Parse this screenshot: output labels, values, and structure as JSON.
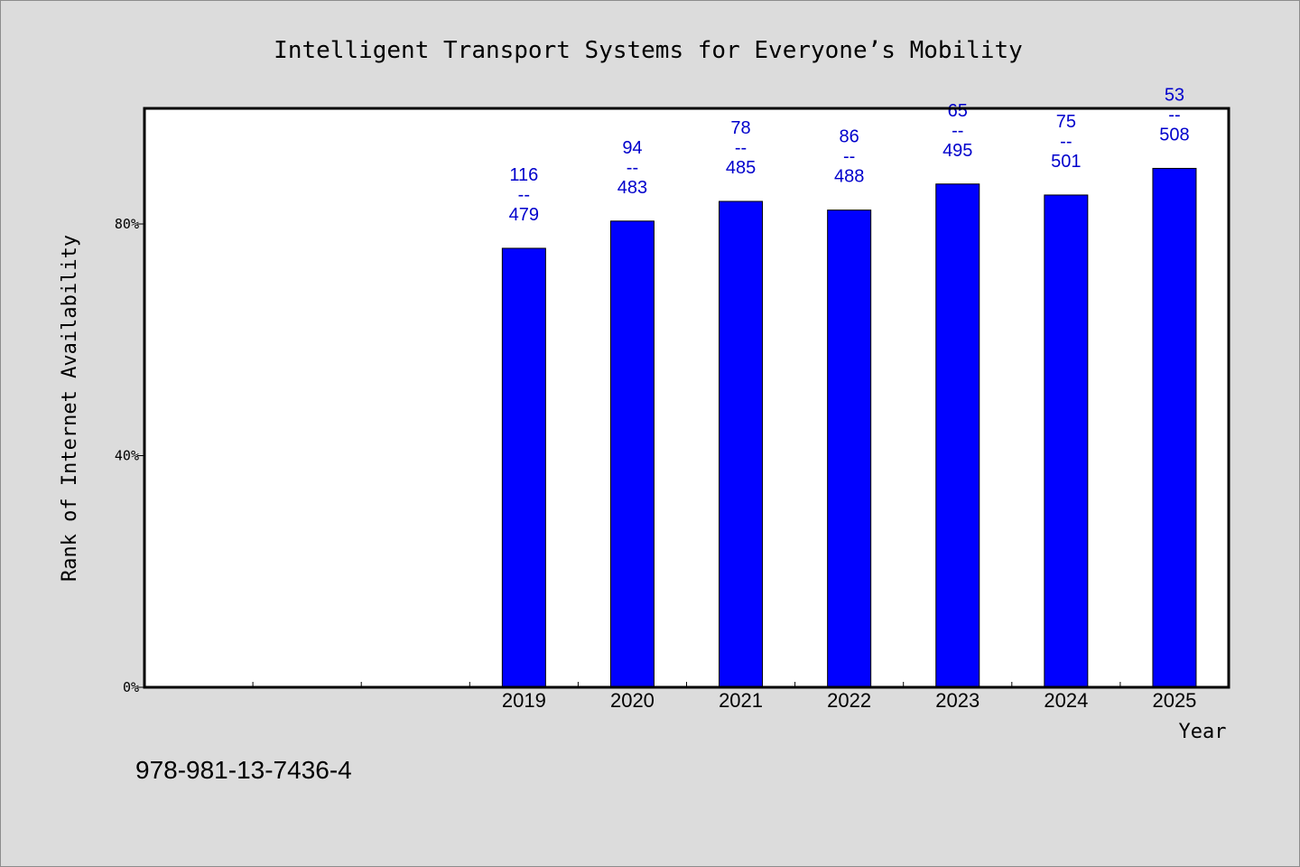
{
  "chart_data": {
    "type": "bar",
    "title": "Intelligent Transport Systems for Everyone’s Mobility",
    "xlabel": "Year",
    "ylabel": "Rank of Internet Availability",
    "categories": [
      "",
      "",
      "",
      "2019",
      "2020",
      "2021",
      "2022",
      "2023",
      "2024",
      "2025"
    ],
    "values": [
      null,
      null,
      null,
      75.8,
      80.5,
      83.9,
      82.4,
      86.9,
      85.0,
      89.6
    ],
    "data_labels": [
      null,
      null,
      null,
      {
        "top": "116",
        "mid": "--",
        "bottom": "479"
      },
      {
        "top": "94",
        "mid": "--",
        "bottom": "483"
      },
      {
        "top": "78",
        "mid": "--",
        "bottom": "485"
      },
      {
        "top": "86",
        "mid": "--",
        "bottom": "488"
      },
      {
        "top": "65",
        "mid": "--",
        "bottom": "495"
      },
      {
        "top": "75",
        "mid": "--",
        "bottom": "501"
      },
      {
        "top": "53",
        "mid": "--",
        "bottom": "508"
      }
    ],
    "ylim": [
      0,
      100
    ],
    "yticks": [
      {
        "value": 0,
        "label": "0%"
      },
      {
        "value": 40,
        "label": "40%"
      },
      {
        "value": 80,
        "label": "80%"
      }
    ],
    "grid": false,
    "bar_color": "#0000ff",
    "label_color": "#0000cc",
    "plot_background": "#ffffff",
    "page_background": "#dcdcdc"
  },
  "footnote": "978-981-13-7436-4"
}
